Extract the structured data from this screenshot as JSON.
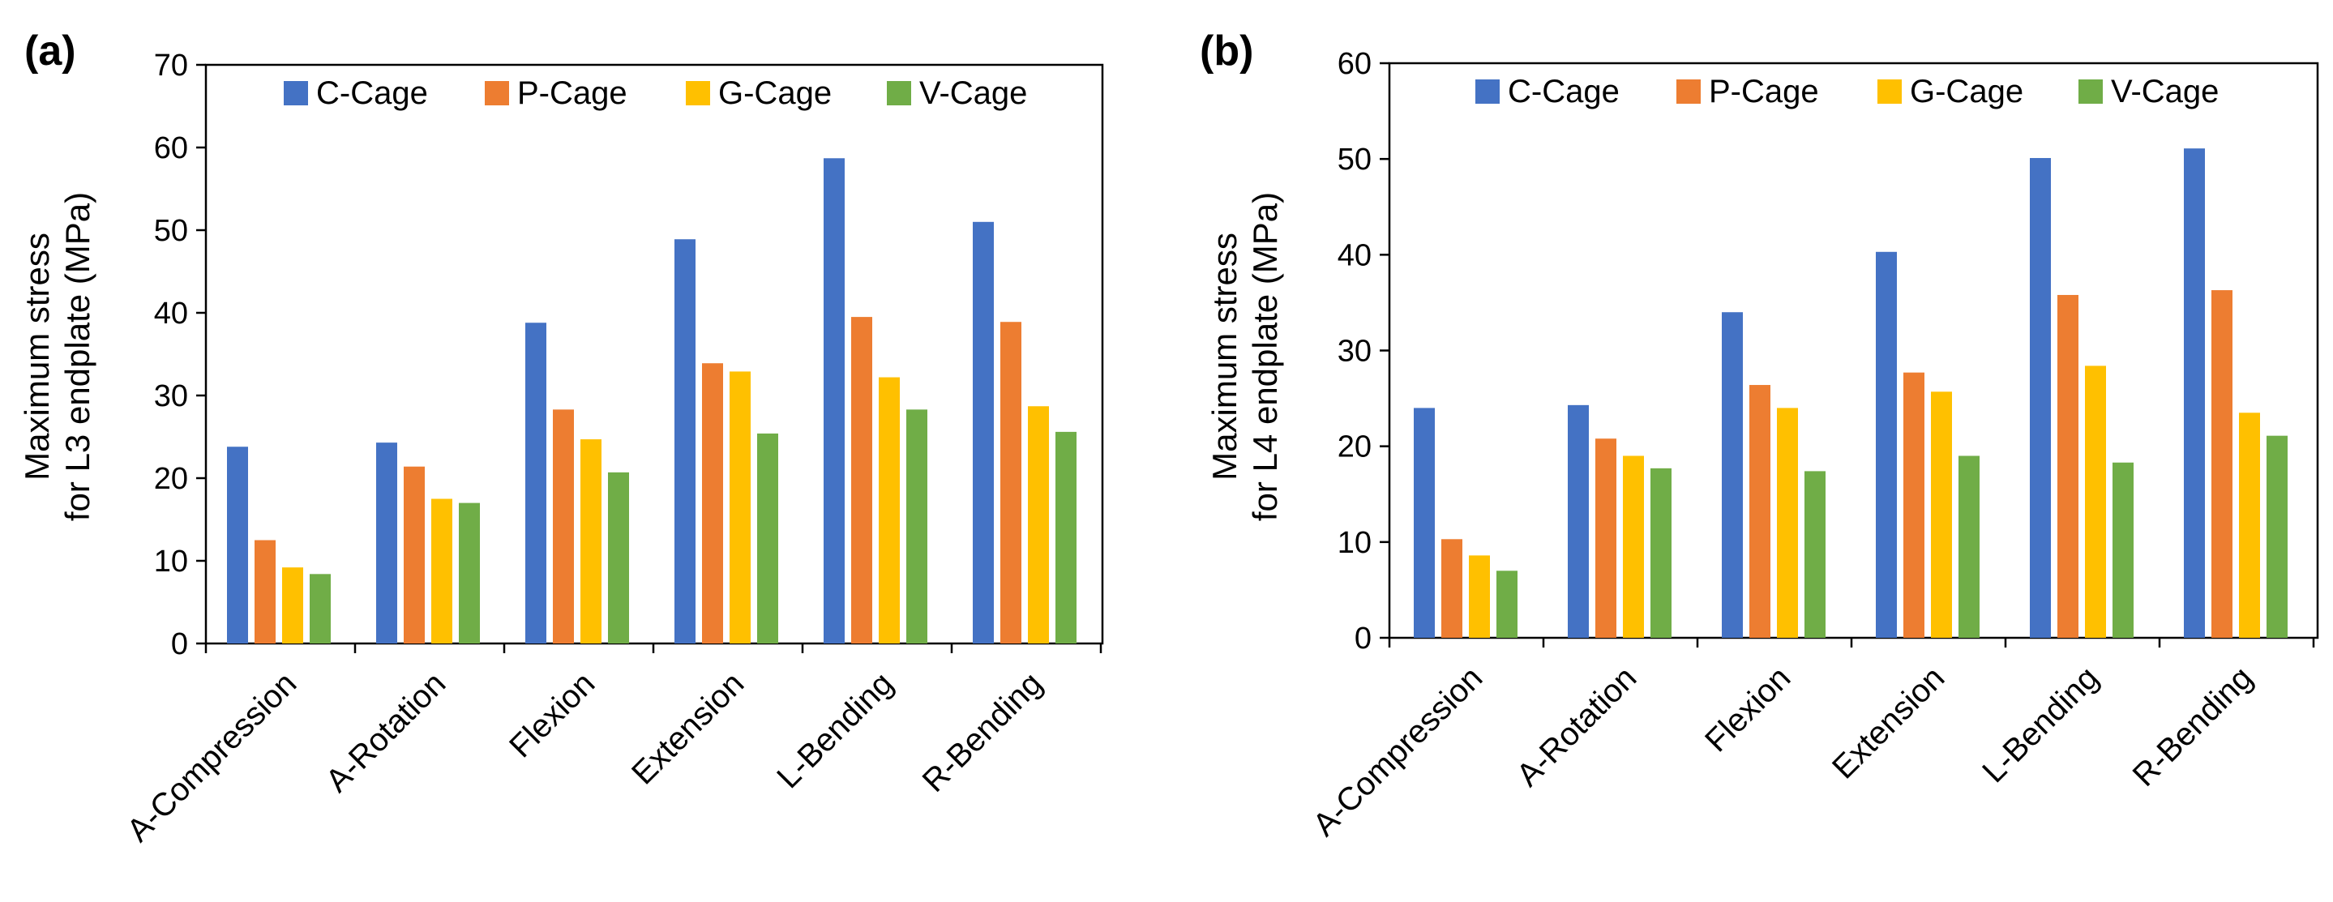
{
  "chart_data": [
    {
      "type": "bar",
      "panel_label": "(a)",
      "categories": [
        "A-Compression",
        "A-Rotation",
        "Flexion",
        "Extension",
        "L-Bending",
        "R-Bending"
      ],
      "series": [
        {
          "name": "C-Cage",
          "color": "#4472C4",
          "values": [
            23.8,
            24.3,
            38.8,
            48.9,
            58.7,
            51.0
          ]
        },
        {
          "name": "P-Cage",
          "color": "#ED7D31",
          "values": [
            12.5,
            21.4,
            28.3,
            33.9,
            39.5,
            38.9
          ]
        },
        {
          "name": "G-Cage",
          "color": "#FFC000",
          "values": [
            9.2,
            17.5,
            24.7,
            32.9,
            32.2,
            28.7
          ]
        },
        {
          "name": "V-Cage",
          "color": "#70AD47",
          "values": [
            8.4,
            17.0,
            20.7,
            25.4,
            28.3,
            25.6
          ]
        }
      ],
      "ylabel_line1": "Maximum stress",
      "ylabel_line2": "for L3 endplate (MPa)",
      "ylim": [
        0,
        70
      ],
      "yticks": [
        "0",
        "10",
        "20",
        "30",
        "40",
        "50",
        "60",
        "70"
      ],
      "legend_position": "top"
    },
    {
      "type": "bar",
      "panel_label": "(b)",
      "categories": [
        "A-Compression",
        "A-Rotation",
        "Flexion",
        "Extension",
        "L-Bending",
        "R-Bending"
      ],
      "series": [
        {
          "name": "C-Cage",
          "color": "#4472C4",
          "values": [
            24.0,
            24.3,
            34.0,
            40.3,
            50.1,
            51.1
          ]
        },
        {
          "name": "P-Cage",
          "color": "#ED7D31",
          "values": [
            10.3,
            20.8,
            26.4,
            27.7,
            35.8,
            36.3
          ]
        },
        {
          "name": "G-Cage",
          "color": "#FFC000",
          "values": [
            8.6,
            19.0,
            24.0,
            25.7,
            28.4,
            23.5
          ]
        },
        {
          "name": "V-Cage",
          "color": "#70AD47",
          "values": [
            7.0,
            17.7,
            17.4,
            19.0,
            18.3,
            21.1
          ]
        }
      ],
      "ylabel_line1": "Maximum stress",
      "ylabel_line2": "for L4 endplate (MPa)",
      "ylim": [
        0,
        60
      ],
      "yticks": [
        "0",
        "10",
        "20",
        "30",
        "40",
        "50",
        "60"
      ],
      "legend_position": "top"
    }
  ]
}
